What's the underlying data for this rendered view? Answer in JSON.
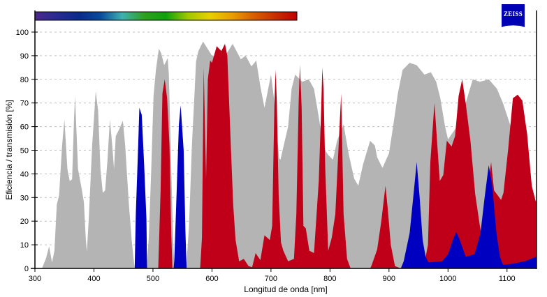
{
  "chart_data": {
    "type": "area",
    "title": "",
    "xlabel": "Longitud de onda [nm]",
    "ylabel": "Eficiencia / transmisión [%]",
    "xlim": [
      300,
      1150
    ],
    "ylim": [
      0,
      100
    ],
    "xticks": [
      300,
      400,
      500,
      600,
      700,
      800,
      900,
      1000,
      1100
    ],
    "yticks": [
      0,
      10,
      20,
      30,
      40,
      50,
      60,
      70,
      80,
      90,
      100
    ],
    "grid": "horizontal dashed",
    "spectrum_bar": {
      "range_nm": [
        300,
        750
      ],
      "colors": [
        "#4a2a8a",
        "#2a2a90",
        "#0a2a8a",
        "#0a4a9a",
        "#40b0b0",
        "#30a020",
        "#10a010",
        "#a0c800",
        "#e8d000",
        "#e8a000",
        "#d86000",
        "#c83000",
        "#c00000"
      ]
    },
    "logo_text": "ZEISS",
    "series": [
      {
        "color": "#b4b4b4",
        "points": [
          [
            312,
            0
          ],
          [
            319,
            4.4
          ],
          [
            324,
            9.4
          ],
          [
            329,
            2.5
          ],
          [
            333,
            7.5
          ],
          [
            337,
            27
          ],
          [
            341,
            31
          ],
          [
            346,
            52
          ],
          [
            350,
            63
          ],
          [
            355,
            42
          ],
          [
            359,
            37
          ],
          [
            363,
            37.7
          ],
          [
            366,
            62
          ],
          [
            368,
            73
          ],
          [
            373,
            42
          ],
          [
            379,
            34
          ],
          [
            383,
            28
          ],
          [
            386,
            13.5
          ],
          [
            388,
            7
          ],
          [
            391,
            20
          ],
          [
            397,
            52
          ],
          [
            401,
            67
          ],
          [
            403,
            75
          ],
          [
            407,
            67
          ],
          [
            411,
            42
          ],
          [
            415,
            32
          ],
          [
            419,
            33
          ],
          [
            423,
            46
          ],
          [
            427,
            63
          ],
          [
            431,
            52
          ],
          [
            434,
            42
          ],
          [
            437,
            56
          ],
          [
            443,
            59
          ],
          [
            449,
            62.5
          ],
          [
            453,
            52
          ],
          [
            459,
            28
          ],
          [
            464,
            12
          ],
          [
            467,
            4.5
          ],
          [
            469,
            0
          ],
          [
            489,
            0
          ],
          [
            490,
            3
          ],
          [
            493,
            13
          ],
          [
            497,
            41
          ],
          [
            501,
            73
          ],
          [
            505,
            84
          ],
          [
            510,
            93
          ],
          [
            514,
            91
          ],
          [
            519,
            86
          ],
          [
            525,
            89
          ],
          [
            527,
            82
          ],
          [
            530,
            52
          ],
          [
            534,
            13
          ],
          [
            536,
            2
          ],
          [
            538,
            0
          ],
          [
            556,
            0
          ],
          [
            557,
            3
          ],
          [
            561,
            17.5
          ],
          [
            566,
            52
          ],
          [
            570,
            72
          ],
          [
            573,
            87.5
          ],
          [
            577,
            92
          ],
          [
            585,
            96
          ],
          [
            595,
            92
          ],
          [
            600,
            90
          ],
          [
            615,
            90
          ],
          [
            625,
            91
          ],
          [
            630,
            93
          ],
          [
            635,
            95
          ],
          [
            649,
            88.5
          ],
          [
            657,
            90
          ],
          [
            667,
            85.5
          ],
          [
            675,
            88
          ],
          [
            682,
            77
          ],
          [
            689,
            68
          ],
          [
            700,
            82
          ],
          [
            705,
            72
          ],
          [
            714,
            46.6
          ],
          [
            716,
            46
          ],
          [
            729,
            60
          ],
          [
            735,
            76
          ],
          [
            741,
            82
          ],
          [
            753,
            79
          ],
          [
            764,
            80
          ],
          [
            773,
            76
          ],
          [
            781,
            64
          ],
          [
            789,
            51
          ],
          [
            797,
            48
          ],
          [
            805,
            46
          ],
          [
            812,
            54
          ],
          [
            823,
            61
          ],
          [
            832,
            48
          ],
          [
            841,
            38
          ],
          [
            848,
            35
          ],
          [
            856,
            44
          ],
          [
            868,
            54
          ],
          [
            876,
            52
          ],
          [
            880,
            47
          ],
          [
            889,
            42.5
          ],
          [
            900,
            48.7
          ],
          [
            907,
            60
          ],
          [
            915,
            74
          ],
          [
            923,
            84
          ],
          [
            935,
            87
          ],
          [
            947,
            86
          ],
          [
            960,
            82
          ],
          [
            971,
            83
          ],
          [
            980,
            79
          ],
          [
            987,
            72
          ],
          [
            995,
            60
          ],
          [
            1000,
            54.6
          ],
          [
            1015,
            60
          ],
          [
            1030,
            70
          ],
          [
            1042,
            80
          ],
          [
            1054,
            79
          ],
          [
            1069,
            80
          ],
          [
            1083,
            76
          ],
          [
            1093,
            70
          ],
          [
            1105,
            61
          ],
          [
            1125,
            45
          ],
          [
            1140,
            33
          ],
          [
            1150,
            28
          ]
        ]
      },
      {
        "color": "#c00018",
        "points": [
          [
            509,
            0
          ],
          [
            513,
            33
          ],
          [
            516,
            74
          ],
          [
            520,
            80
          ],
          [
            524,
            72
          ],
          [
            528,
            52
          ],
          [
            531,
            15
          ],
          [
            533,
            0
          ],
          [
            580,
            0
          ],
          [
            583,
            13
          ],
          [
            586,
            85
          ],
          [
            590,
            38
          ],
          [
            593,
            80
          ],
          [
            597,
            88
          ],
          [
            600,
            87
          ],
          [
            608,
            94
          ],
          [
            616,
            92
          ],
          [
            622,
            95
          ],
          [
            626,
            90
          ],
          [
            629,
            71
          ],
          [
            632,
            52
          ],
          [
            636,
            27
          ],
          [
            640,
            12
          ],
          [
            646,
            3
          ],
          [
            654,
            4
          ],
          [
            662,
            1
          ],
          [
            668,
            0.5
          ],
          [
            674,
            6.5
          ],
          [
            682,
            3.5
          ],
          [
            689,
            14
          ],
          [
            698,
            12
          ],
          [
            702,
            18
          ],
          [
            706,
            72
          ],
          [
            708,
            84
          ],
          [
            710,
            70
          ],
          [
            713,
            31
          ],
          [
            717,
            11
          ],
          [
            721,
            7.5
          ],
          [
            729,
            3
          ],
          [
            739,
            4
          ],
          [
            743,
            23
          ],
          [
            747,
            71
          ],
          [
            749,
            86
          ],
          [
            752,
            68
          ],
          [
            755,
            18
          ],
          [
            759,
            17
          ],
          [
            765,
            7.5
          ],
          [
            773,
            6.5
          ],
          [
            781,
            37
          ],
          [
            785,
            67
          ],
          [
            787,
            85
          ],
          [
            789,
            76
          ],
          [
            792,
            42
          ],
          [
            797,
            7.5
          ],
          [
            803,
            13
          ],
          [
            809,
            23
          ],
          [
            817,
            64
          ],
          [
            819,
            74
          ],
          [
            823,
            23
          ],
          [
            829,
            4
          ],
          [
            835,
            0
          ],
          [
            868,
            0
          ],
          [
            870,
            1
          ],
          [
            880,
            8
          ],
          [
            887,
            20
          ],
          [
            894,
            35
          ],
          [
            898,
            25
          ],
          [
            903,
            10
          ],
          [
            910,
            1
          ],
          [
            920,
            0
          ],
          [
            960,
            2
          ],
          [
            966,
            10
          ],
          [
            970,
            45
          ],
          [
            977,
            70
          ],
          [
            986,
            37
          ],
          [
            992,
            39.5
          ],
          [
            998,
            54
          ],
          [
            1006,
            51.6
          ],
          [
            1012,
            56
          ],
          [
            1018,
            73
          ],
          [
            1024,
            80
          ],
          [
            1030,
            70
          ],
          [
            1038,
            54
          ],
          [
            1046,
            31.5
          ],
          [
            1054,
            18
          ],
          [
            1058,
            12
          ],
          [
            1066,
            30
          ],
          [
            1073,
            45
          ],
          [
            1078,
            33
          ],
          [
            1090,
            29
          ],
          [
            1094,
            32
          ],
          [
            1102,
            50.7
          ],
          [
            1110,
            72
          ],
          [
            1118,
            73.5
          ],
          [
            1126,
            71
          ],
          [
            1134,
            57
          ],
          [
            1142,
            35
          ],
          [
            1150,
            27
          ]
        ]
      },
      {
        "color": "#0000c0",
        "points": [
          [
            469,
            0
          ],
          [
            471,
            23
          ],
          [
            475,
            52
          ],
          [
            477,
            68
          ],
          [
            481,
            65
          ],
          [
            485,
            44
          ],
          [
            489,
            21
          ],
          [
            490,
            0
          ],
          [
            535,
            0
          ],
          [
            536,
            3
          ],
          [
            539,
            24
          ],
          [
            544,
            61
          ],
          [
            547,
            69
          ],
          [
            552,
            50
          ],
          [
            555,
            16
          ],
          [
            557,
            0
          ],
          [
            920,
            0
          ],
          [
            925,
            3
          ],
          [
            935,
            15
          ],
          [
            941,
            30
          ],
          [
            947,
            45
          ],
          [
            952,
            30
          ],
          [
            957,
            12
          ],
          [
            962,
            5
          ],
          [
            967,
            2.5
          ],
          [
            990,
            3
          ],
          [
            1000,
            6
          ],
          [
            1008,
            12
          ],
          [
            1014,
            15.5
          ],
          [
            1020,
            12
          ],
          [
            1030,
            5
          ],
          [
            1045,
            6
          ],
          [
            1055,
            15
          ],
          [
            1062,
            30
          ],
          [
            1069,
            43.7
          ],
          [
            1075,
            35
          ],
          [
            1082,
            15
          ],
          [
            1088,
            5
          ],
          [
            1093,
            1.5
          ],
          [
            1110,
            2
          ],
          [
            1130,
            3
          ],
          [
            1150,
            5
          ]
        ]
      }
    ]
  }
}
